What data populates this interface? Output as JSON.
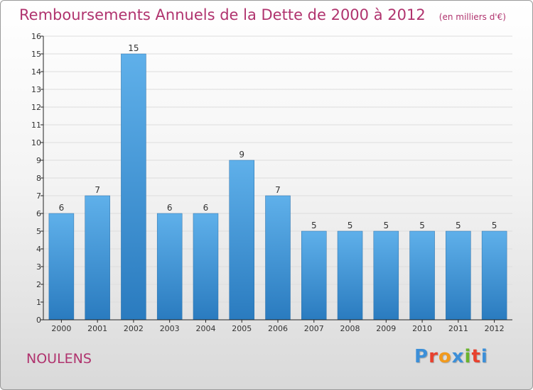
{
  "header": {
    "title": "Remboursements Annuels de la Dette de 2000 à 2012",
    "subtitle": "(en milliers d'€)"
  },
  "footer": {
    "commune": "NOULENS",
    "logo_text": "Proxiti",
    "logo_colors": [
      "#3c8fd8",
      "#e8412e",
      "#f29a1d",
      "#3c8fd8",
      "#6ab42d",
      "#e8412e",
      "#3c8fd8"
    ]
  },
  "colors": {
    "bar_light": "#5fb0ea",
    "bar_dark": "#2a7bbf",
    "title": "#b0336e",
    "grid": "#dddddd",
    "axis": "#222222"
  },
  "chart_data": {
    "type": "bar",
    "title": "Remboursements Annuels de la Dette de 2000 à 2012",
    "subtitle": "(en milliers d'€)",
    "categories": [
      "2000",
      "2001",
      "2002",
      "2003",
      "2004",
      "2005",
      "2006",
      "2007",
      "2008",
      "2009",
      "2010",
      "2011",
      "2012"
    ],
    "values": [
      6,
      7,
      15,
      6,
      6,
      9,
      7,
      5,
      5,
      5,
      5,
      5,
      5
    ],
    "ylim": [
      0,
      16
    ],
    "yticks": [
      0,
      1,
      2,
      3,
      4,
      5,
      6,
      7,
      8,
      9,
      10,
      11,
      12,
      13,
      14,
      15,
      16
    ],
    "grid": true,
    "data_labels": true
  }
}
